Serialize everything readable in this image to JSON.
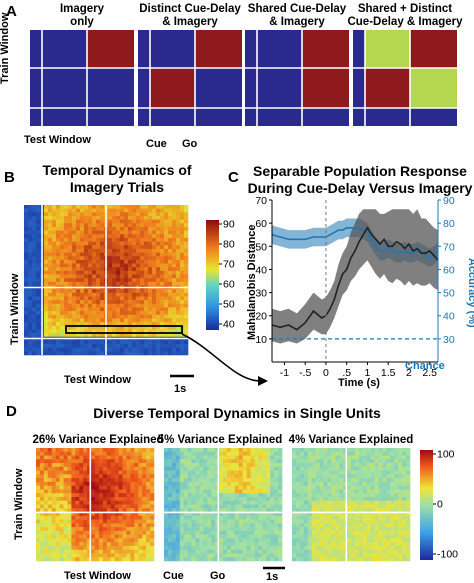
{
  "panel_labels": {
    "a": "A",
    "b": "B",
    "c": "C",
    "d": "D"
  },
  "panel_a": {
    "titles": [
      [
        "Imagery",
        "only"
      ],
      [
        "Distinct Cue-Delay",
        "& Imagery"
      ],
      [
        "Shared Cue-Delay",
        "& Imagery"
      ],
      [
        "Shared + Distinct",
        "Cue-Delay & Imagery"
      ]
    ],
    "ylabel": "Train Window",
    "xlabel": "Test Window",
    "cue_label": "Cue",
    "go_label": "Go",
    "colors": {
      "blue": "#2a2a8e",
      "red": "#8e1a1e",
      "green": "#b5d74f"
    }
  },
  "panel_b": {
    "title": [
      "Temporal Dynamics of",
      "Imagery Trials"
    ],
    "ylabel": "Train Window",
    "xlabel": "Test Window",
    "scale_label": "1s",
    "colorbar_ticks": [
      "90",
      "80",
      "70",
      "60",
      "50",
      "40"
    ]
  },
  "panel_c": {
    "title": [
      "Separable Population Response",
      "During Cue-Delay Versus Imagery"
    ],
    "chance_label": "Chance"
  },
  "panel_d": {
    "title": "Diverse Temporal Dynamics in Single Units",
    "subtitles": [
      "26% Variance Explained",
      "5% Variance Explained",
      "4% Variance Explained"
    ],
    "ylabel": "Train Window",
    "xlabel": "Test Window",
    "cue_label": "Cue",
    "go_label": "Go",
    "scale_label": "1s",
    "colorbar_ticks": [
      "100",
      "0",
      "-100"
    ]
  },
  "chart_data": {
    "type": "line",
    "title": "Separable Population Response During Cue-Delay Versus Imagery",
    "xlabel": "Time (s)",
    "ylabel": "Mahalanobis Distance",
    "y2label": "Accuracy (%)",
    "x_ticks": [
      "-1",
      "-.5",
      "0",
      ".5",
      "1",
      "1.5",
      "2",
      "2.5"
    ],
    "y_ticks": [
      "10",
      "20",
      "30",
      "40",
      "50",
      "60",
      "70"
    ],
    "y2_ticks": [
      "30",
      "40",
      "50",
      "60",
      "70",
      "80",
      "90"
    ],
    "xlim": [
      -1.3,
      2.7
    ],
    "ylim": [
      0,
      70
    ],
    "y2lim": [
      20,
      90
    ],
    "chance_level": 30,
    "colors": {
      "mahalanobis": "#222222",
      "accuracy": "#1f77b4"
    },
    "series": [
      {
        "axis": "left",
        "x": [
          -1.3,
          -1.1,
          -0.9,
          -0.7,
          -0.5,
          -0.3,
          -0.1,
          0.0,
          0.1,
          0.2,
          0.3,
          0.4,
          0.5,
          0.6,
          0.7,
          0.8,
          0.9,
          1.0,
          1.1,
          1.2,
          1.3,
          1.4,
          1.5,
          1.6,
          1.7,
          1.8,
          1.9,
          2.0,
          2.1,
          2.2,
          2.3,
          2.4,
          2.5,
          2.6,
          2.7
        ],
        "values": [
          16,
          15,
          16,
          14,
          17,
          22,
          19,
          20,
          23,
          27,
          33,
          38,
          40,
          45,
          48,
          52,
          55,
          58,
          55,
          53,
          51,
          53,
          50,
          50,
          52,
          51,
          49,
          51,
          48,
          49,
          47,
          47,
          48,
          46,
          44
        ],
        "lower": [
          9,
          8,
          9,
          8,
          10,
          14,
          12,
          12,
          15,
          19,
          24,
          29,
          31,
          35,
          37,
          40,
          42,
          44,
          41,
          38,
          36,
          38,
          35,
          34,
          36,
          35,
          33,
          35,
          33,
          34,
          33,
          33,
          34,
          32,
          31
        ],
        "upper": [
          23,
          22,
          23,
          21,
          25,
          30,
          27,
          28,
          31,
          35,
          42,
          47,
          50,
          56,
          60,
          64,
          66,
          66,
          66,
          66,
          64,
          64,
          65,
          66,
          66,
          66,
          66,
          66,
          64,
          66,
          62,
          62,
          60,
          58,
          57
        ]
      },
      {
        "axis": "right",
        "x": [
          -1.3,
          -1.1,
          -0.9,
          -0.7,
          -0.5,
          -0.3,
          -0.1,
          0.0,
          0.1,
          0.2,
          0.3,
          0.4,
          0.5,
          0.6,
          0.7,
          0.8,
          0.9,
          1.0,
          1.1,
          1.2,
          1.3,
          1.4,
          1.5,
          1.6,
          1.7,
          1.8,
          1.9,
          2.0,
          2.1,
          2.2,
          2.3,
          2.4,
          2.5,
          2.6,
          2.7
        ],
        "values": [
          75,
          74,
          73,
          73,
          73,
          74,
          74,
          74,
          75,
          76,
          77,
          77,
          78,
          78,
          78,
          78,
          77,
          76,
          73,
          70,
          68,
          68,
          69,
          68,
          67,
          67,
          68,
          67,
          67,
          68,
          67,
          66,
          65,
          66,
          68
        ],
        "lower": [
          71,
          70,
          69,
          69,
          69,
          70,
          70,
          70,
          71,
          72,
          73,
          73,
          74,
          74,
          74,
          74,
          73,
          72,
          69,
          66,
          64,
          64,
          65,
          64,
          63,
          63,
          64,
          63,
          63,
          64,
          63,
          62,
          61,
          62,
          64
        ],
        "upper": [
          79,
          78,
          77,
          77,
          77,
          78,
          78,
          78,
          79,
          80,
          81,
          81,
          82,
          82,
          82,
          82,
          81,
          80,
          77,
          74,
          72,
          72,
          73,
          72,
          71,
          71,
          72,
          71,
          71,
          72,
          71,
          70,
          69,
          70,
          72
        ]
      }
    ]
  }
}
